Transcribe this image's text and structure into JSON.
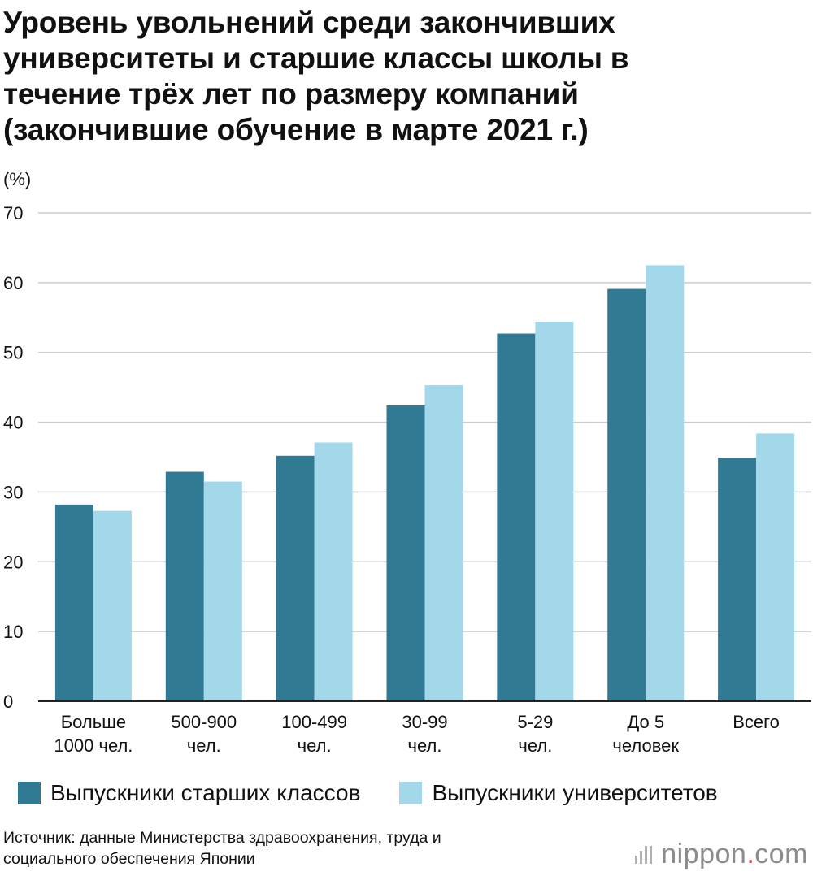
{
  "title_lines": [
    "Уровень увольнений среди закончивших",
    "университеты и старшие классы школы в",
    "течение трёх лет по размеру компаний",
    "(закончившие обучение в марте 2021 г.)"
  ],
  "chart_data": {
    "type": "bar",
    "title": "Уровень увольнений среди закончивших университеты и старшие классы школы в течение трёх лет по размеру компаний (закончившие обучение в марте 2021 г.)",
    "ylabel": "(%)",
    "xlabel": "",
    "ylim": [
      0,
      70
    ],
    "yticks": [
      0,
      10,
      20,
      30,
      40,
      50,
      60,
      70
    ],
    "grid": true,
    "legend_position": "bottom",
    "categories": [
      [
        "Больше",
        "1000 чел."
      ],
      [
        "500-900",
        "чел."
      ],
      [
        "100-499",
        "чел."
      ],
      [
        "30-99",
        "чел."
      ],
      [
        "5-29",
        "чел."
      ],
      [
        "До 5",
        "человек"
      ],
      [
        "Всего"
      ]
    ],
    "series": [
      {
        "name": "Выпускники старших классов",
        "color": "#317a94",
        "values": [
          28.2,
          32.9,
          35.2,
          42.4,
          52.7,
          59.1,
          34.9
        ]
      },
      {
        "name": "Выпускники университетов",
        "color": "#a3d8ea",
        "values": [
          27.3,
          31.5,
          37.1,
          45.3,
          54.4,
          62.5,
          38.4
        ]
      }
    ]
  },
  "source_lines": [
    "Источник: данные Министерства здравоохранения, труда и",
    "социального обеспечения Японии"
  ],
  "brand": {
    "name": "nippon",
    "dot": ".",
    "suffix": "com"
  },
  "colors": {
    "grid": "#cccccc",
    "axis": "#222222",
    "brand_dot": "#e8452c"
  }
}
